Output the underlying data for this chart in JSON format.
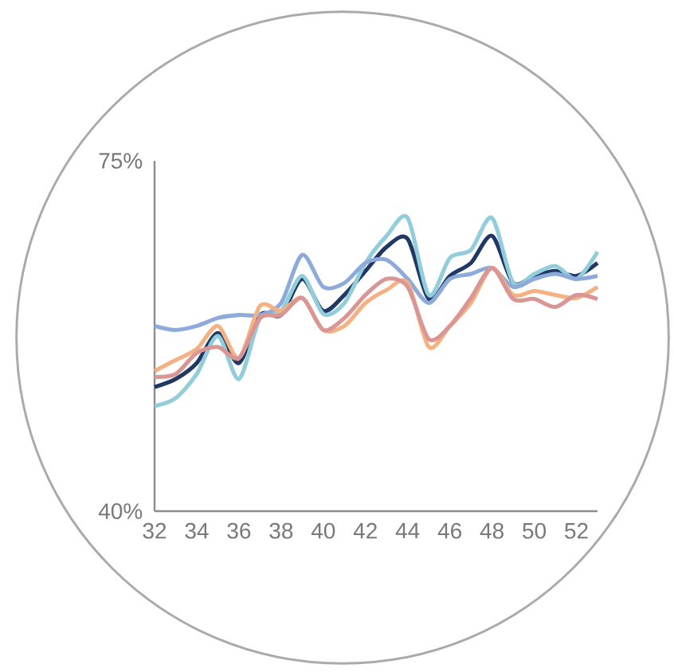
{
  "chart_data": {
    "type": "line",
    "x": [
      32,
      33,
      34,
      35,
      36,
      37,
      38,
      39,
      40,
      41,
      42,
      43,
      44,
      45,
      46,
      47,
      48,
      49,
      50,
      51,
      52,
      53
    ],
    "series": [
      {
        "color": "#1f3864",
        "values": [
          52.4,
          53.2,
          54.8,
          57.8,
          54.8,
          59.6,
          59.6,
          63.2,
          60.0,
          61.6,
          64.0,
          66.4,
          67.2,
          61.2,
          63.5,
          64.8,
          67.5,
          62.8,
          63.5,
          64.0,
          63.5,
          64.8
        ]
      },
      {
        "color": "#92cddc",
        "values": [
          50.5,
          51.3,
          53.7,
          57.5,
          53.2,
          59.3,
          60.0,
          63.5,
          59.7,
          60.8,
          64.8,
          67.5,
          69.3,
          61.6,
          65.3,
          66.1,
          69.3,
          62.8,
          63.7,
          64.5,
          63.2,
          65.9
        ]
      },
      {
        "color": "#8eaadb",
        "values": [
          58.5,
          58.1,
          58.5,
          59.3,
          59.6,
          59.6,
          60.8,
          65.6,
          62.4,
          62.8,
          64.8,
          65.1,
          63.2,
          60.8,
          63.2,
          63.7,
          64.3,
          62.4,
          63.2,
          63.7,
          63.2,
          63.5
        ]
      },
      {
        "color": "#f4b183",
        "values": [
          54.0,
          55.1,
          56.2,
          58.5,
          55.3,
          60.5,
          60.0,
          61.3,
          58.1,
          58.5,
          60.8,
          62.1,
          62.8,
          56.4,
          58.5,
          60.8,
          64.3,
          61.6,
          62.0,
          61.6,
          61.3,
          62.4
        ]
      },
      {
        "color": "#d99694",
        "values": [
          53.4,
          53.7,
          55.8,
          56.4,
          55.3,
          59.3,
          59.6,
          61.3,
          58.1,
          59.3,
          61.6,
          63.2,
          62.4,
          57.2,
          58.5,
          61.3,
          64.3,
          61.2,
          61.2,
          60.4,
          61.6,
          61.2
        ]
      }
    ],
    "xlim": [
      32,
      53
    ],
    "xticks": [
      32,
      34,
      36,
      38,
      40,
      42,
      44,
      46,
      48,
      50,
      52
    ],
    "ylim": [
      40,
      75
    ],
    "yticks": [
      {
        "value": 40,
        "label": "40%"
      },
      {
        "value": 75,
        "label": "75%"
      }
    ],
    "marker": "none",
    "line_style": "solid"
  }
}
